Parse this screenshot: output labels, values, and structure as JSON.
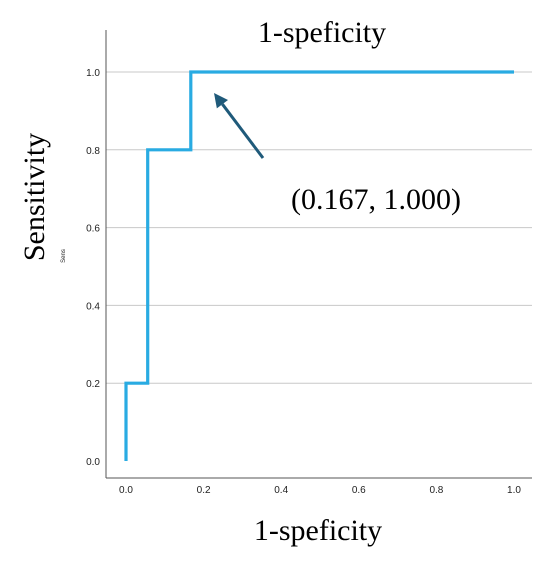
{
  "chart_data": {
    "type": "line",
    "title": "1-speficity",
    "xlabel": "1-speficity",
    "ylabel": "Sensitivity",
    "ylabel_fragment": "Sens",
    "xlim": [
      0,
      1
    ],
    "ylim": [
      0,
      1
    ],
    "x_ticks": [
      "0.0",
      "0.2",
      "0.4",
      "0.6",
      "0.8",
      "1.0"
    ],
    "y_ticks": [
      "0.0",
      "0.2",
      "0.4",
      "0.6",
      "0.8",
      "1.0"
    ],
    "grid": "horizontal",
    "series": [
      {
        "color": "#29abe2",
        "x": [
          0.0,
          0.0,
          0.056,
          0.056,
          0.167,
          0.167,
          1.0
        ],
        "y": [
          0.0,
          0.2,
          0.2,
          0.8,
          0.8,
          1.0,
          1.0
        ]
      }
    ],
    "annotation": {
      "text": "(0.167, 1.000)",
      "point": [
        0.167,
        1.0
      ],
      "color": "#1f5a7a"
    }
  }
}
